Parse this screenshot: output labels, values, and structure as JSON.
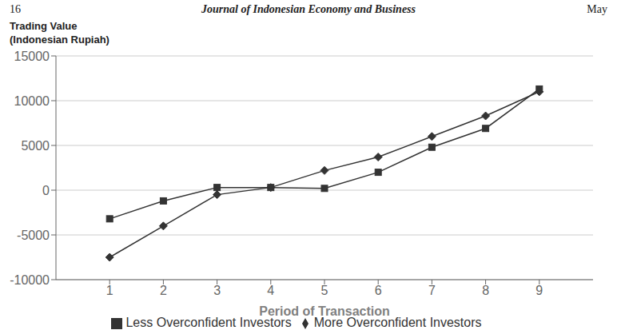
{
  "chart_data": {
    "type": "line",
    "title": "Journal of Indonesian Economy and Business",
    "annotations": [
      "16",
      "May"
    ],
    "xlabel": "Period of Transaction",
    "ylabel": [
      "Trading Value",
      "(Indonesian Rupiah)"
    ],
    "x": [
      1,
      2,
      3,
      4,
      5,
      6,
      7,
      8,
      9
    ],
    "series": [
      {
        "name": "More Overconfident Investors",
        "color": "#333333",
        "marker": "diamond",
        "values": [
          -7500,
          -4000,
          -500,
          300,
          2200,
          3700,
          6000,
          8300,
          11000
        ]
      },
      {
        "name": "Less Overconfident Investors",
        "color": "#333333",
        "marker": "square",
        "values": [
          -3200,
          -1200,
          300,
          300,
          200,
          2000,
          4800,
          6900,
          11300
        ]
      }
    ],
    "xlim": [
      0,
      10
    ],
    "xticks": [
      1,
      2,
      3,
      4,
      5,
      6,
      7,
      8,
      9
    ],
    "ylim": [
      -10000,
      15000
    ],
    "yticks": [
      -10000,
      -5000,
      0,
      5000,
      10000,
      15000
    ],
    "grid": true,
    "legend": "bottom"
  }
}
